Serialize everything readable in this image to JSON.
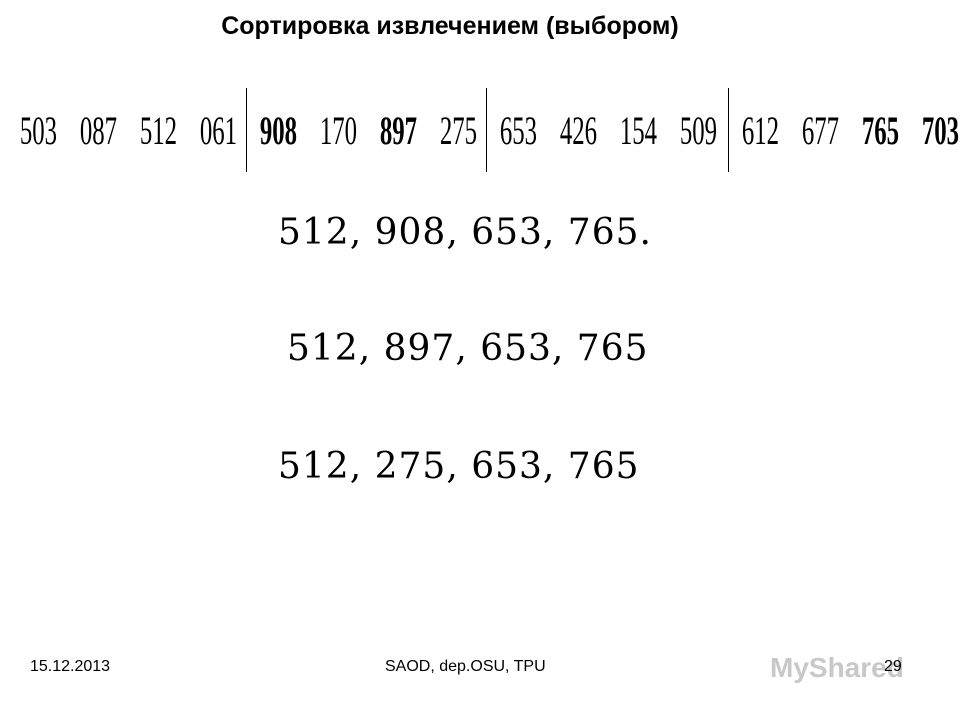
{
  "header": {
    "title": "Сортировка извлечением (выбором)"
  },
  "sequence": {
    "groups": [
      [
        {
          "text": "503",
          "bold": false
        },
        {
          "text": "087",
          "bold": false
        },
        {
          "text": "512",
          "bold": false
        },
        {
          "text": "061",
          "bold": false
        }
      ],
      [
        {
          "text": "908",
          "bold": true
        },
        {
          "text": "170",
          "bold": false
        },
        {
          "text": "897",
          "bold": true
        },
        {
          "text": "275",
          "bold": false
        }
      ],
      [
        {
          "text": "653",
          "bold": false
        },
        {
          "text": "426",
          "bold": false
        },
        {
          "text": "154",
          "bold": false
        },
        {
          "text": "509",
          "bold": false
        }
      ],
      [
        {
          "text": "612",
          "bold": false
        },
        {
          "text": "677",
          "bold": false
        },
        {
          "text": "765",
          "bold": true
        },
        {
          "text": "703",
          "bold": true
        }
      ]
    ]
  },
  "steps": [
    "512, 908, 653, 765.",
    "512, 897, 653, 765",
    "512, 275, 653, 765"
  ],
  "footer": {
    "date": "15.12.2013",
    "center": "SAOD, dep.OSU, TPU",
    "page": "29",
    "watermark": "MyShared"
  }
}
